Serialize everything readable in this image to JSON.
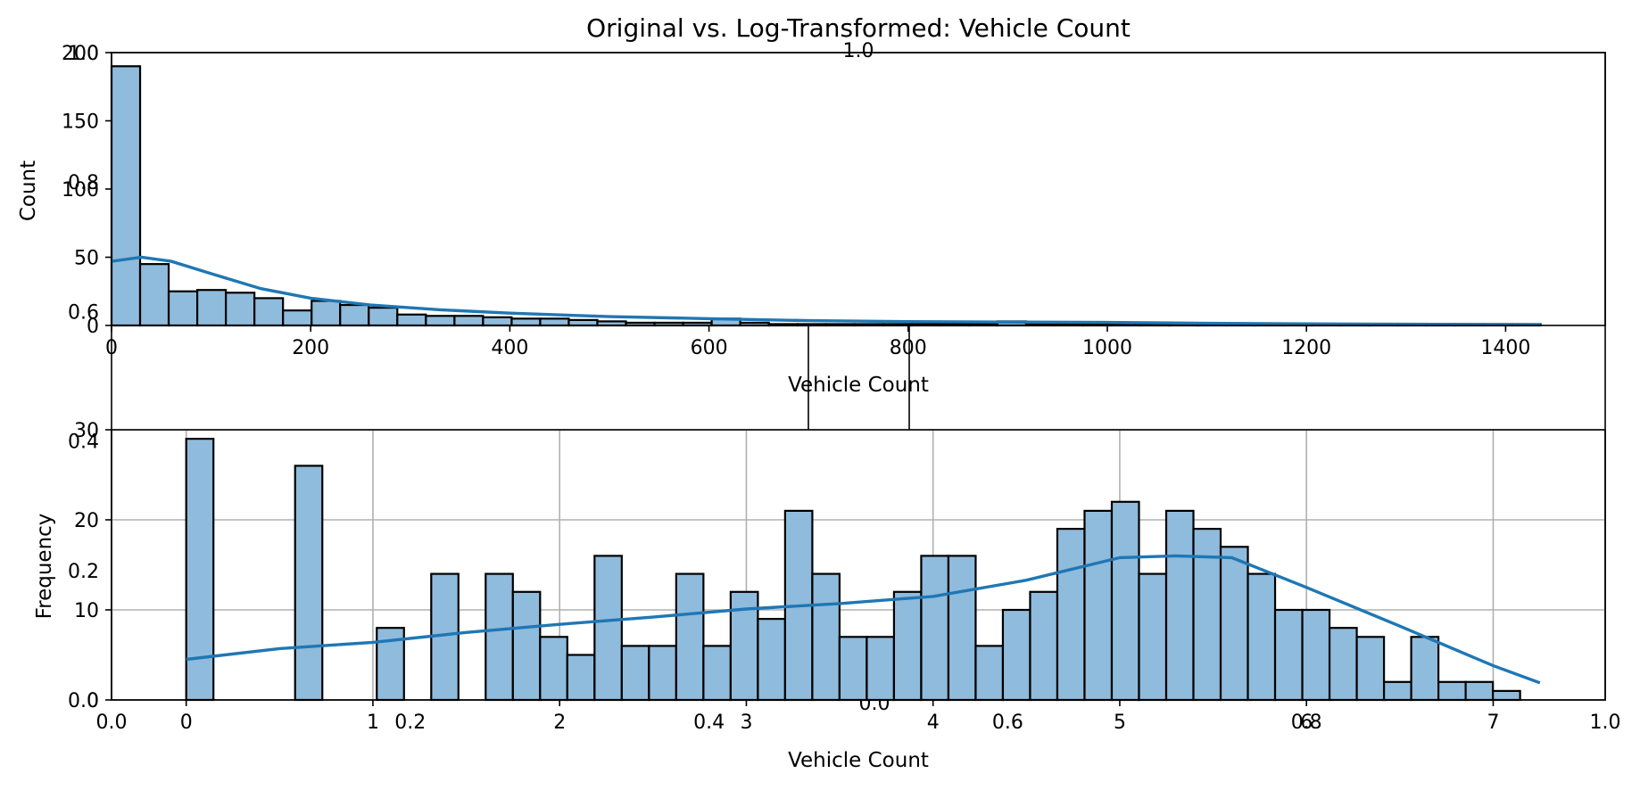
{
  "figure": {
    "title": "Original vs. Log-Transformed: Vehicle Count",
    "bar_color": "#8fbbdc",
    "kde_color": "#1f77b4",
    "edge_color": "#000000"
  },
  "chart_data": [
    {
      "id": "original",
      "type": "bar",
      "subtype": "histogram",
      "title": "",
      "xlabel": "Vehicle Count",
      "ylabel": "Count",
      "xlim": [
        0,
        1500
      ],
      "ylim": [
        0,
        200
      ],
      "grid": false,
      "bin_width": 28.7,
      "bin_start": 0,
      "bin_counts": [
        190,
        45,
        25,
        26,
        24,
        20,
        11,
        18,
        15,
        13,
        8,
        7,
        7,
        6,
        5,
        5,
        4,
        3,
        2,
        2,
        2,
        5,
        2,
        1,
        1,
        1,
        1,
        1,
        1,
        1,
        1,
        3,
        1,
        1,
        1,
        1,
        1,
        1,
        1,
        1,
        1,
        1,
        1,
        1,
        1,
        1,
        1,
        1,
        1,
        1
      ],
      "x_ticks": [
        0,
        200,
        400,
        600,
        800,
        1000,
        1200,
        1400
      ],
      "y_ticks": [
        0,
        50,
        150,
        200
      ],
      "y_tick_labels_overlaid": [
        {
          "value": 0,
          "label": "0"
        },
        {
          "value": 50,
          "label": "50"
        },
        {
          "value": 100,
          "label": "100"
        },
        {
          "value": 150,
          "label": "150"
        },
        {
          "value": 200,
          "label": "200"
        }
      ],
      "kde": {
        "x": [
          0,
          30,
          60,
          100,
          150,
          200,
          260,
          330,
          400,
          500,
          600,
          700,
          800,
          900,
          1000,
          1100,
          1200,
          1300,
          1435
        ],
        "y": [
          47,
          50,
          47,
          38,
          27,
          20,
          15,
          11.5,
          9,
          6.5,
          5,
          3.5,
          2.8,
          2.5,
          2.2,
          1.6,
          1.2,
          0.9,
          0.6
        ]
      }
    },
    {
      "id": "log",
      "type": "bar",
      "subtype": "histogram",
      "title": "",
      "xlabel": "Vehicle Count",
      "ylabel": "Frequency",
      "xlim": [
        -0.4,
        7.6
      ],
      "ylim": [
        0,
        30
      ],
      "grid": true,
      "bin_width": 0.1458,
      "bin_start": 0,
      "bin_counts": [
        29,
        0,
        0,
        0,
        26,
        0,
        0,
        8,
        0,
        14,
        0,
        14,
        12,
        7,
        5,
        16,
        6,
        6,
        14,
        6,
        12,
        9,
        21,
        14,
        7,
        7,
        12,
        16,
        16,
        6,
        10,
        12,
        19,
        21,
        22,
        14,
        21,
        19,
        17,
        14,
        10,
        10,
        8,
        7,
        2,
        7,
        2,
        2,
        1
      ],
      "x_ticks": [
        0,
        1,
        2,
        3,
        4,
        5,
        6,
        7
      ],
      "y_ticks": [
        0,
        10,
        20,
        30
      ],
      "kde": {
        "x": [
          0,
          0.5,
          1,
          1.5,
          2,
          2.5,
          3,
          3.5,
          4,
          4.5,
          5,
          5.3,
          5.6,
          6,
          6.5,
          7,
          7.25
        ],
        "y": [
          4.5,
          5.7,
          6.4,
          7.5,
          8.4,
          9.2,
          10.1,
          10.7,
          11.5,
          13.3,
          15.8,
          16,
          15.8,
          12.5,
          8.2,
          3.8,
          1.9
        ]
      }
    }
  ],
  "overlay_axes": {
    "x_tick_labels": [
      "0.0",
      "0.2",
      "0.4",
      "0.6",
      "0.8",
      "1.0"
    ],
    "y_tick_labels": [
      "0.0",
      "0.2",
      "0.4",
      "0.6",
      "0.8",
      "1.0"
    ],
    "center_label": "0.0"
  }
}
